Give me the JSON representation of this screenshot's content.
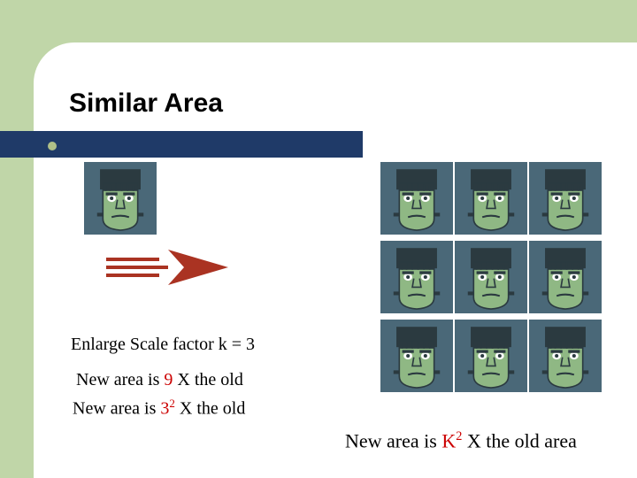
{
  "title": "Similar Area",
  "colors": {
    "band": "#c0d6a8",
    "navy": "#1f3a68",
    "bullet": "#b0c088",
    "red": "#cc0000",
    "face_skin": "#8fb884",
    "face_dark": "#2b3a40",
    "face_bg": "#4a6878",
    "arrow": "#aa3322"
  },
  "face": {
    "single_width": 82,
    "single_height": 82,
    "grid_cell": 82,
    "grid_dim": 3
  },
  "arrow": {
    "width": 150,
    "height": 44
  },
  "caption1": "Enlarge Scale factor k = 3",
  "caption2_pre": "New area is  ",
  "caption2_num": "9",
  "caption2_post": "  X the old",
  "caption3_pre": "New area is   ",
  "caption3_base": "3",
  "caption3_exp": "2",
  "caption3_post": "  X the old",
  "caption4_pre": "New area is  ",
  "caption4_base": "K",
  "caption4_exp": "2",
  "caption4_post": "  X the old area"
}
